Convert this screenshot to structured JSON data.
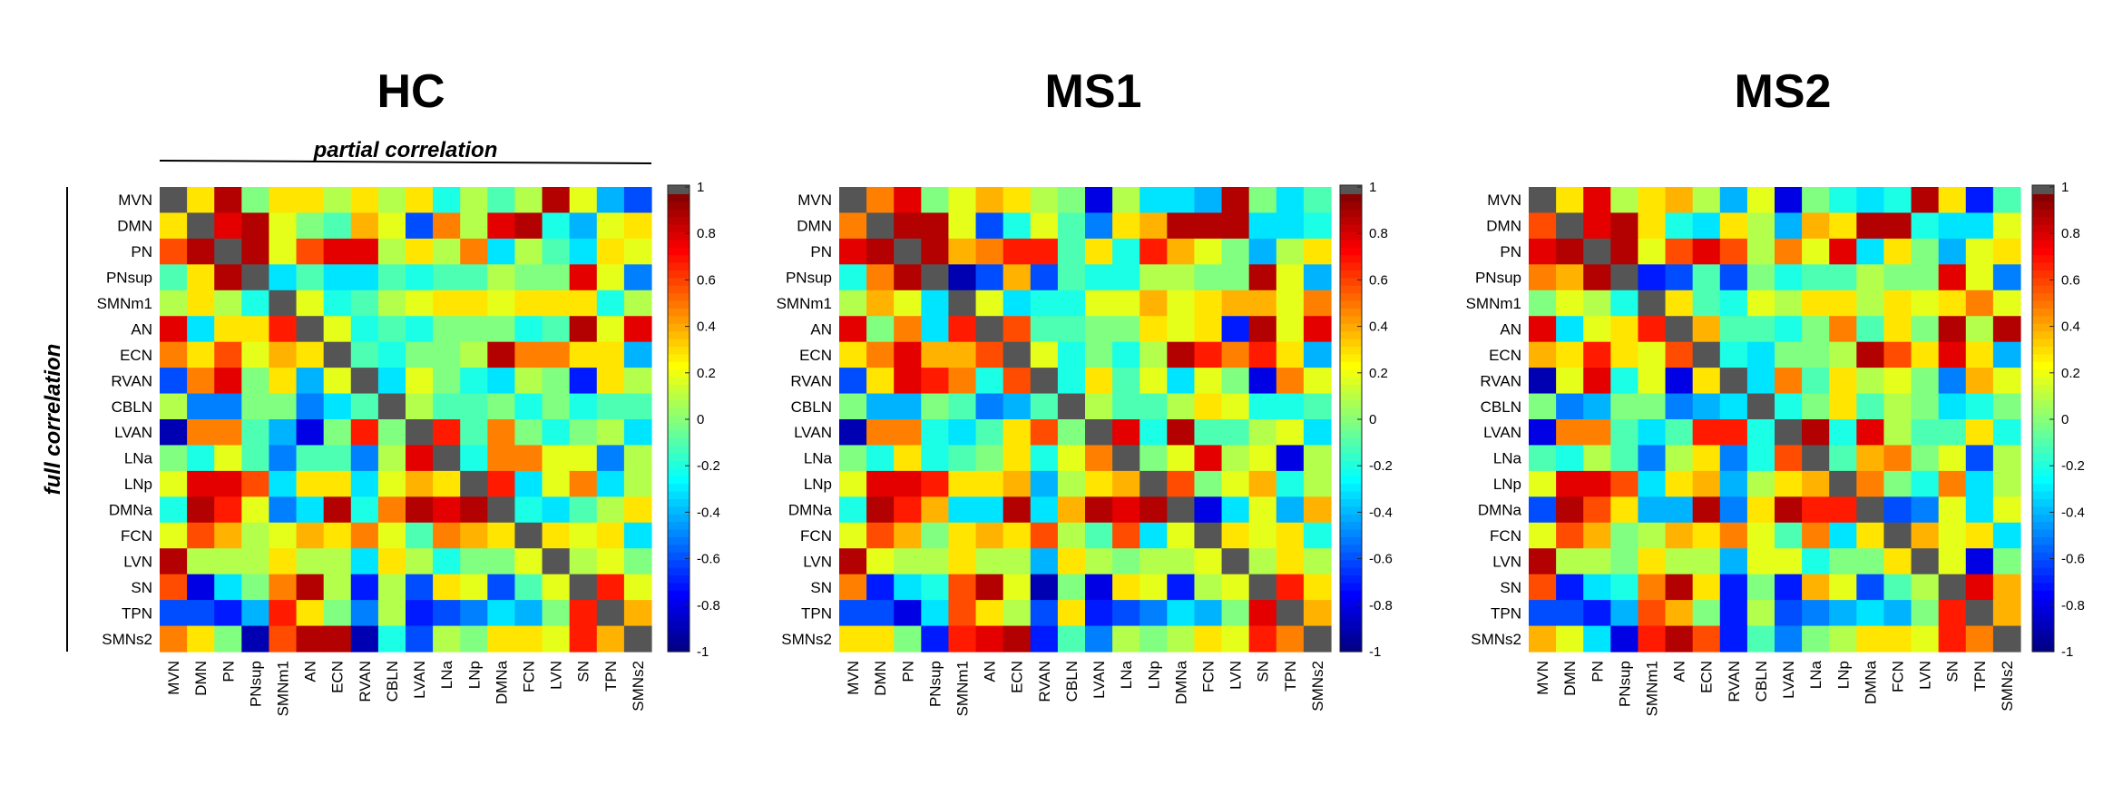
{
  "chart_data": [
    {
      "type": "heatmap",
      "title": "HC",
      "labels": [
        "MVN",
        "DMN",
        "PN",
        "PNsup",
        "SMNm1",
        "AN",
        "ECN",
        "RVAN",
        "CBLN",
        "LVAN",
        "LNa",
        "LNp",
        "DMNa",
        "FCN",
        "LVN",
        "SN",
        "TPN",
        "SMNs2"
      ],
      "upper_triangle_label": "partial correlation",
      "lower_triangle_label": "full correlation",
      "diagonal_value": null,
      "colorbar": {
        "min": -1,
        "max": 1,
        "ticks": [
          -1,
          -0.8,
          -0.6,
          -0.4,
          -0.2,
          0,
          0.2,
          0.4,
          0.6,
          0.8,
          1
        ],
        "colormap": "jet"
      },
      "matrix": [
        [
          null,
          0.3,
          0.9,
          0.0,
          0.3,
          0.3,
          0.1,
          0.3,
          0.1,
          0.3,
          -0.2,
          0.1,
          -0.1,
          0.1,
          0.9,
          0.2,
          -0.4,
          -0.6
        ],
        [
          0.3,
          null,
          0.8,
          0.9,
          0.2,
          0.0,
          -0.1,
          0.4,
          0.2,
          -0.6,
          0.5,
          0.1,
          0.8,
          0.9,
          -0.2,
          -0.4,
          0.2,
          0.3
        ],
        [
          0.6,
          0.9,
          null,
          0.9,
          0.2,
          0.6,
          0.8,
          0.8,
          0.1,
          0.3,
          0.1,
          0.5,
          -0.3,
          0.1,
          -0.1,
          -0.3,
          0.3,
          0.2
        ],
        [
          -0.1,
          0.3,
          0.9,
          null,
          -0.3,
          -0.1,
          -0.3,
          -0.3,
          -0.1,
          -0.2,
          -0.1,
          -0.1,
          0.1,
          0.0,
          0.0,
          0.8,
          0.2,
          -0.5
        ],
        [
          0.1,
          0.3,
          0.1,
          -0.2,
          null,
          0.2,
          -0.2,
          -0.1,
          0.1,
          0.2,
          0.3,
          0.3,
          0.2,
          0.3,
          0.3,
          0.3,
          -0.2,
          0.1
        ],
        [
          0.8,
          -0.3,
          0.3,
          0.3,
          0.7,
          null,
          0.2,
          -0.2,
          -0.1,
          -0.2,
          0.0,
          0.0,
          0.0,
          -0.2,
          -0.1,
          0.9,
          0.2,
          0.8
        ],
        [
          0.5,
          0.3,
          0.6,
          0.2,
          0.4,
          0.3,
          null,
          -0.1,
          -0.2,
          0.0,
          0.0,
          0.1,
          0.9,
          0.5,
          0.5,
          0.3,
          0.3,
          -0.4
        ],
        [
          -0.6,
          0.5,
          0.8,
          0.0,
          0.3,
          -0.4,
          0.2,
          null,
          -0.3,
          0.2,
          0.0,
          -0.2,
          -0.3,
          0.1,
          0.0,
          -0.7,
          0.3,
          0.1
        ],
        [
          0.1,
          -0.5,
          -0.5,
          0.0,
          0.0,
          -0.5,
          -0.3,
          -0.1,
          null,
          0.1,
          -0.1,
          -0.1,
          0.0,
          -0.2,
          0.0,
          -0.2,
          -0.1,
          -0.1
        ],
        [
          -0.9,
          0.5,
          0.5,
          -0.1,
          -0.4,
          -0.8,
          0.0,
          0.7,
          0.0,
          null,
          0.7,
          -0.1,
          0.5,
          0.0,
          -0.2,
          0.0,
          0.1,
          -0.3
        ],
        [
          0.0,
          -0.2,
          0.2,
          -0.1,
          -0.5,
          -0.1,
          -0.1,
          -0.5,
          0.1,
          0.8,
          null,
          -0.2,
          0.5,
          0.5,
          0.2,
          0.2,
          -0.5,
          0.1
        ],
        [
          0.2,
          0.8,
          0.8,
          0.6,
          -0.3,
          0.3,
          0.3,
          -0.3,
          0.2,
          0.4,
          0.3,
          null,
          0.7,
          -0.3,
          0.2,
          0.5,
          -0.3,
          0.1
        ],
        [
          -0.2,
          0.9,
          0.7,
          0.2,
          -0.5,
          -0.3,
          0.9,
          -0.2,
          0.5,
          0.9,
          0.8,
          0.9,
          null,
          -0.2,
          -0.3,
          -0.1,
          0.1,
          0.3
        ],
        [
          0.2,
          0.6,
          0.4,
          0.1,
          0.2,
          0.4,
          0.3,
          0.5,
          0.2,
          -0.1,
          0.5,
          0.4,
          0.3,
          null,
          0.3,
          0.2,
          0.3,
          -0.3
        ],
        [
          0.9,
          0.1,
          0.1,
          0.1,
          0.3,
          0.1,
          0.1,
          -0.3,
          0.3,
          0.1,
          -0.2,
          0.0,
          0.0,
          0.2,
          null,
          0.1,
          0.2,
          0.0
        ],
        [
          0.6,
          -0.8,
          -0.3,
          0.0,
          0.5,
          0.9,
          0.1,
          -0.7,
          0.1,
          -0.6,
          0.3,
          0.2,
          -0.6,
          -0.1,
          0.2,
          null,
          0.7,
          0.2
        ],
        [
          -0.6,
          -0.6,
          -0.7,
          -0.4,
          0.7,
          0.3,
          0.0,
          -0.5,
          0.1,
          -0.7,
          -0.6,
          -0.5,
          -0.3,
          -0.4,
          0.0,
          0.7,
          null,
          0.4
        ],
        [
          0.5,
          0.3,
          0.0,
          -0.9,
          0.6,
          0.9,
          0.9,
          -0.9,
          -0.2,
          -0.6,
          0.1,
          0.0,
          0.3,
          0.3,
          0.2,
          0.7,
          0.4,
          null
        ]
      ]
    },
    {
      "type": "heatmap",
      "title": "MS1",
      "labels": [
        "MVN",
        "DMN",
        "PN",
        "PNsup",
        "SMNm1",
        "AN",
        "ECN",
        "RVAN",
        "CBLN",
        "LVAN",
        "LNa",
        "LNp",
        "DMNa",
        "FCN",
        "LVN",
        "SN",
        "TPN",
        "SMNs2"
      ],
      "diagonal_value": null,
      "colorbar": {
        "min": -1,
        "max": 1,
        "ticks": [
          -1,
          -0.8,
          -0.6,
          -0.4,
          -0.2,
          0,
          0.2,
          0.4,
          0.6,
          0.8,
          1
        ],
        "colormap": "jet"
      },
      "matrix": [
        [
          null,
          0.5,
          0.8,
          0.0,
          0.2,
          0.4,
          0.3,
          0.1,
          0.0,
          -0.8,
          0.1,
          -0.3,
          -0.3,
          -0.4,
          0.9,
          0.0,
          -0.3,
          -0.1
        ],
        [
          0.5,
          null,
          0.9,
          0.9,
          0.2,
          -0.6,
          -0.2,
          0.2,
          -0.1,
          -0.5,
          0.3,
          0.4,
          0.9,
          0.9,
          0.9,
          -0.3,
          -0.3,
          -0.2
        ],
        [
          0.8,
          0.9,
          null,
          0.9,
          0.4,
          0.5,
          0.7,
          0.7,
          -0.1,
          0.3,
          -0.2,
          0.7,
          0.4,
          0.2,
          0.0,
          -0.4,
          0.1,
          0.3
        ],
        [
          -0.2,
          0.5,
          0.9,
          null,
          -0.9,
          -0.6,
          0.4,
          -0.6,
          -0.1,
          -0.2,
          -0.2,
          0.1,
          0.1,
          0.0,
          0.0,
          0.9,
          0.2,
          -0.4
        ],
        [
          0.1,
          0.4,
          0.2,
          -0.3,
          null,
          0.2,
          -0.3,
          -0.2,
          -0.2,
          0.2,
          0.2,
          0.4,
          0.2,
          0.3,
          0.4,
          0.4,
          0.2,
          0.5
        ],
        [
          0.8,
          0.0,
          0.5,
          -0.3,
          0.7,
          null,
          0.6,
          -0.1,
          -0.1,
          0.0,
          0.0,
          0.3,
          0.2,
          0.3,
          -0.7,
          0.9,
          0.2,
          0.8
        ],
        [
          0.3,
          0.5,
          0.8,
          0.4,
          0.4,
          0.6,
          null,
          0.2,
          -0.2,
          0.0,
          -0.2,
          0.1,
          0.9,
          0.7,
          0.5,
          0.7,
          0.3,
          -0.4
        ],
        [
          -0.6,
          0.3,
          0.8,
          0.7,
          0.5,
          -0.2,
          0.6,
          null,
          -0.2,
          0.3,
          -0.1,
          0.2,
          -0.3,
          0.2,
          0.0,
          -0.8,
          0.5,
          0.2
        ],
        [
          0.0,
          -0.4,
          -0.4,
          0.0,
          -0.1,
          -0.5,
          -0.4,
          -0.1,
          null,
          0.1,
          -0.1,
          -0.1,
          0.1,
          0.3,
          0.2,
          -0.2,
          -0.2,
          -0.1
        ],
        [
          -0.9,
          0.5,
          0.5,
          -0.2,
          -0.3,
          -0.1,
          0.3,
          0.6,
          0.0,
          null,
          0.8,
          -0.2,
          0.9,
          -0.1,
          -0.1,
          0.1,
          0.2,
          -0.3
        ],
        [
          0.0,
          -0.2,
          0.3,
          -0.2,
          -0.1,
          0.0,
          0.3,
          -0.2,
          0.2,
          0.5,
          null,
          0.0,
          0.2,
          0.8,
          0.1,
          0.2,
          -0.8,
          0.1
        ],
        [
          0.2,
          0.8,
          0.8,
          0.7,
          0.3,
          0.3,
          0.4,
          -0.4,
          0.1,
          0.3,
          0.4,
          null,
          0.6,
          0.0,
          0.2,
          0.4,
          -0.2,
          0.1
        ],
        [
          -0.2,
          0.9,
          0.7,
          0.4,
          -0.3,
          -0.3,
          0.9,
          -0.3,
          0.4,
          0.9,
          0.8,
          0.9,
          null,
          -0.8,
          -0.3,
          0.2,
          -0.4,
          0.4
        ],
        [
          0.2,
          0.6,
          0.4,
          0.0,
          0.3,
          0.4,
          0.3,
          0.6,
          0.1,
          -0.1,
          0.6,
          -0.3,
          0.2,
          null,
          0.3,
          0.2,
          0.3,
          -0.2
        ],
        [
          0.9,
          0.2,
          0.1,
          0.1,
          0.3,
          0.1,
          0.1,
          -0.4,
          0.3,
          0.1,
          0.0,
          0.1,
          0.1,
          0.2,
          null,
          0.1,
          0.3,
          0.1
        ],
        [
          0.5,
          -0.7,
          -0.3,
          -0.2,
          0.6,
          0.9,
          0.2,
          -0.9,
          0.0,
          -0.8,
          0.3,
          0.2,
          -0.7,
          0.1,
          0.2,
          null,
          0.7,
          0.3
        ],
        [
          -0.6,
          -0.6,
          -0.8,
          -0.3,
          0.6,
          0.3,
          0.1,
          -0.6,
          0.3,
          -0.7,
          -0.6,
          -0.5,
          -0.3,
          -0.4,
          0.0,
          0.8,
          null,
          0.4
        ],
        [
          0.3,
          0.3,
          0.0,
          -0.7,
          0.7,
          0.8,
          0.9,
          -0.7,
          -0.1,
          -0.5,
          0.1,
          0.0,
          0.1,
          0.3,
          0.2,
          0.7,
          0.5,
          null
        ]
      ]
    },
    {
      "type": "heatmap",
      "title": "MS2",
      "labels": [
        "MVN",
        "DMN",
        "PN",
        "PNsup",
        "SMNm1",
        "AN",
        "ECN",
        "RVAN",
        "CBLN",
        "LVAN",
        "LNa",
        "LNp",
        "DMNa",
        "FCN",
        "LVN",
        "SN",
        "TPN",
        "SMNs2"
      ],
      "diagonal_value": null,
      "colorbar": {
        "min": -1,
        "max": 1,
        "ticks": [
          -1,
          -0.8,
          -0.6,
          -0.4,
          -0.2,
          0,
          0.2,
          0.4,
          0.6,
          0.8,
          1
        ],
        "colormap": "jet"
      },
      "matrix": [
        [
          null,
          0.3,
          0.8,
          0.1,
          0.3,
          0.4,
          0.1,
          -0.4,
          0.2,
          -0.8,
          0.0,
          -0.2,
          -0.3,
          -0.2,
          0.9,
          0.3,
          -0.7,
          -0.1
        ],
        [
          0.6,
          null,
          0.8,
          0.9,
          0.3,
          -0.2,
          -0.3,
          0.3,
          0.1,
          -0.4,
          0.4,
          0.3,
          0.9,
          0.9,
          -0.2,
          -0.3,
          -0.3,
          0.2
        ],
        [
          0.8,
          0.9,
          null,
          0.9,
          0.2,
          0.6,
          0.8,
          0.6,
          0.1,
          0.5,
          0.2,
          0.8,
          -0.3,
          0.3,
          0.0,
          -0.4,
          0.2,
          0.3
        ],
        [
          0.5,
          0.4,
          0.9,
          null,
          -0.7,
          -0.6,
          -0.1,
          -0.6,
          0.0,
          -0.2,
          -0.1,
          -0.1,
          0.1,
          0.0,
          0.0,
          0.8,
          0.2,
          -0.5
        ],
        [
          0.0,
          0.2,
          0.1,
          -0.2,
          null,
          0.3,
          -0.1,
          -0.2,
          0.2,
          0.1,
          0.3,
          0.3,
          0.1,
          0.3,
          0.2,
          0.3,
          0.5,
          0.2
        ],
        [
          0.8,
          -0.3,
          0.2,
          0.3,
          0.7,
          null,
          0.4,
          -0.1,
          -0.1,
          -0.2,
          0.0,
          0.5,
          -0.1,
          0.3,
          0.0,
          0.9,
          0.1,
          0.9
        ],
        [
          0.4,
          0.3,
          0.7,
          0.3,
          0.2,
          0.6,
          null,
          -0.2,
          -0.3,
          0.0,
          0.0,
          0.1,
          0.9,
          0.6,
          0.3,
          0.8,
          0.3,
          -0.4
        ],
        [
          -0.9,
          0.2,
          0.8,
          -0.2,
          0.2,
          -0.8,
          0.3,
          null,
          -0.3,
          0.5,
          -0.1,
          0.3,
          0.1,
          0.2,
          0.0,
          -0.5,
          0.4,
          0.2
        ],
        [
          0.0,
          -0.5,
          -0.4,
          0.0,
          0.0,
          -0.5,
          -0.4,
          -0.3,
          null,
          -0.2,
          0.0,
          0.3,
          -0.1,
          0.1,
          0.0,
          -0.3,
          -0.2,
          0.0
        ],
        [
          -0.8,
          0.5,
          0.5,
          -0.1,
          -0.3,
          -0.1,
          0.7,
          0.7,
          -0.2,
          null,
          0.9,
          -0.2,
          0.8,
          0.1,
          -0.1,
          -0.1,
          0.3,
          -0.2
        ],
        [
          -0.1,
          -0.2,
          0.1,
          -0.1,
          -0.5,
          0.1,
          0.3,
          -0.5,
          -0.2,
          0.6,
          null,
          -0.1,
          0.4,
          0.5,
          0.0,
          0.2,
          -0.6,
          0.1
        ],
        [
          0.2,
          0.8,
          0.8,
          0.6,
          -0.3,
          0.3,
          0.4,
          -0.4,
          0.1,
          0.3,
          0.4,
          null,
          0.5,
          0.0,
          -0.2,
          0.5,
          -0.3,
          0.1
        ],
        [
          -0.6,
          0.9,
          0.6,
          0.3,
          -0.4,
          -0.4,
          0.9,
          -0.5,
          0.3,
          0.9,
          0.7,
          0.7,
          null,
          -0.6,
          -0.5,
          0.2,
          -0.3,
          0.2
        ],
        [
          0.2,
          0.6,
          0.4,
          0.0,
          0.1,
          0.4,
          0.3,
          0.5,
          0.2,
          -0.1,
          0.5,
          -0.3,
          0.3,
          null,
          0.4,
          0.2,
          0.3,
          -0.3
        ],
        [
          0.9,
          0.1,
          0.1,
          0.0,
          0.3,
          0.1,
          0.1,
          -0.4,
          0.2,
          0.2,
          -0.2,
          0.0,
          0.0,
          0.3,
          null,
          0.2,
          -0.8,
          0.0
        ],
        [
          0.6,
          -0.7,
          -0.3,
          -0.2,
          0.5,
          0.9,
          0.3,
          -0.7,
          0.0,
          -0.7,
          0.4,
          0.2,
          -0.6,
          -0.1,
          0.1,
          null,
          0.8,
          0.4
        ],
        [
          -0.6,
          -0.6,
          -0.7,
          -0.4,
          0.6,
          0.4,
          0.0,
          -0.7,
          0.1,
          -0.6,
          -0.5,
          -0.4,
          -0.3,
          -0.4,
          0.0,
          0.7,
          null,
          0.4
        ],
        [
          0.4,
          0.2,
          -0.3,
          -0.8,
          0.7,
          0.9,
          0.6,
          -0.7,
          -0.1,
          -0.5,
          0.0,
          0.1,
          0.3,
          0.3,
          0.2,
          0.7,
          0.5,
          null
        ]
      ]
    }
  ]
}
